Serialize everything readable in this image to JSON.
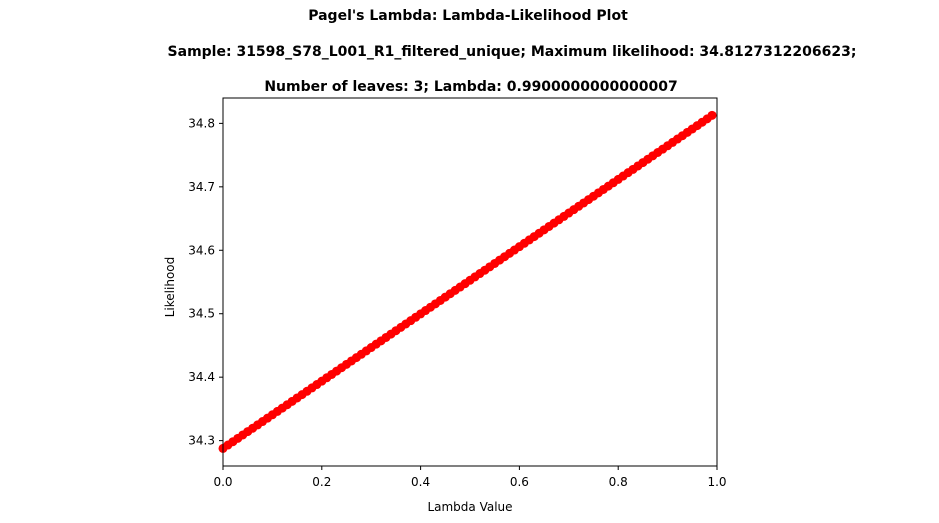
{
  "chart_data": {
    "type": "scatter",
    "title_lines": [
      "Pagel's Lambda: Lambda-Likelihood Plot",
      "Sample: 31598_S78_L001_R1_filtered_unique; Maximum likelihood: 34.8127312206623;",
      "Number of leaves: 3; Lambda: 0.9900000000000007"
    ],
    "xlabel": "Lambda Value",
    "ylabel": "Likelihood",
    "xlim": [
      0.0,
      1.0
    ],
    "ylim": [
      34.26,
      34.84
    ],
    "xticks": [
      0.0,
      0.2,
      0.4,
      0.6,
      0.8,
      1.0
    ],
    "xtick_labels": [
      "0.0",
      "0.2",
      "0.4",
      "0.6",
      "0.8",
      "1.0"
    ],
    "yticks": [
      34.3,
      34.4,
      34.5,
      34.6,
      34.7,
      34.8
    ],
    "ytick_labels": [
      "34.3",
      "34.4",
      "34.5",
      "34.6",
      "34.7",
      "34.8"
    ],
    "grid": false,
    "legend": "none",
    "series": [
      {
        "color": "#ff0000",
        "marker": "circle",
        "x": [
          0.0,
          0.01,
          0.02,
          0.03,
          0.04,
          0.05,
          0.06,
          0.07,
          0.08,
          0.09,
          0.1,
          0.11,
          0.12,
          0.13,
          0.14,
          0.15,
          0.16,
          0.17,
          0.18,
          0.19,
          0.2,
          0.21,
          0.22,
          0.23,
          0.24,
          0.25,
          0.26,
          0.27,
          0.28,
          0.29,
          0.3,
          0.31,
          0.32,
          0.33,
          0.34,
          0.35,
          0.36,
          0.37,
          0.38,
          0.39,
          0.4,
          0.41,
          0.42,
          0.43,
          0.44,
          0.45,
          0.46,
          0.47,
          0.48,
          0.49,
          0.5,
          0.51,
          0.52,
          0.53,
          0.54,
          0.55,
          0.56,
          0.57,
          0.58,
          0.59,
          0.6,
          0.61,
          0.62,
          0.63,
          0.64,
          0.65,
          0.66,
          0.67,
          0.68,
          0.69,
          0.7,
          0.71,
          0.72,
          0.73,
          0.74,
          0.75,
          0.76,
          0.77,
          0.78,
          0.79,
          0.8,
          0.81,
          0.82,
          0.83,
          0.84,
          0.85,
          0.86,
          0.87,
          0.88,
          0.89,
          0.9,
          0.91,
          0.92,
          0.93,
          0.94,
          0.95,
          0.96,
          0.97,
          0.98,
          0.99
        ],
        "y": [
          34.2877,
          34.293,
          34.2983,
          34.3036,
          34.3089,
          34.3142,
          34.3195,
          34.3248,
          34.3301,
          34.3354,
          34.3407,
          34.346,
          34.3513,
          34.3566,
          34.3619,
          34.3672,
          34.3725,
          34.3778,
          34.3831,
          34.3884,
          34.3937,
          34.399,
          34.4043,
          34.4096,
          34.4149,
          34.4202,
          34.4255,
          34.4308,
          34.4361,
          34.4414,
          34.4467,
          34.452,
          34.4573,
          34.4626,
          34.4679,
          34.4732,
          34.4785,
          34.4838,
          34.4891,
          34.4944,
          34.4997,
          34.505,
          34.5103,
          34.5156,
          34.5209,
          34.5262,
          34.5315,
          34.5368,
          34.5421,
          34.5474,
          34.5527,
          34.558,
          34.5633,
          34.5686,
          34.5739,
          34.5792,
          34.5845,
          34.5898,
          34.5951,
          34.6004,
          34.6057,
          34.611,
          34.6163,
          34.6216,
          34.6269,
          34.6322,
          34.6375,
          34.6428,
          34.6481,
          34.6534,
          34.6587,
          34.664,
          34.6693,
          34.6746,
          34.6799,
          34.6852,
          34.6905,
          34.6958,
          34.7011,
          34.7064,
          34.7117,
          34.717,
          34.7223,
          34.7276,
          34.7329,
          34.7382,
          34.7435,
          34.7488,
          34.7541,
          34.7594,
          34.7647,
          34.77,
          34.7753,
          34.7806,
          34.7859,
          34.7912,
          34.7965,
          34.8018,
          34.8071,
          34.8127
        ]
      }
    ]
  }
}
